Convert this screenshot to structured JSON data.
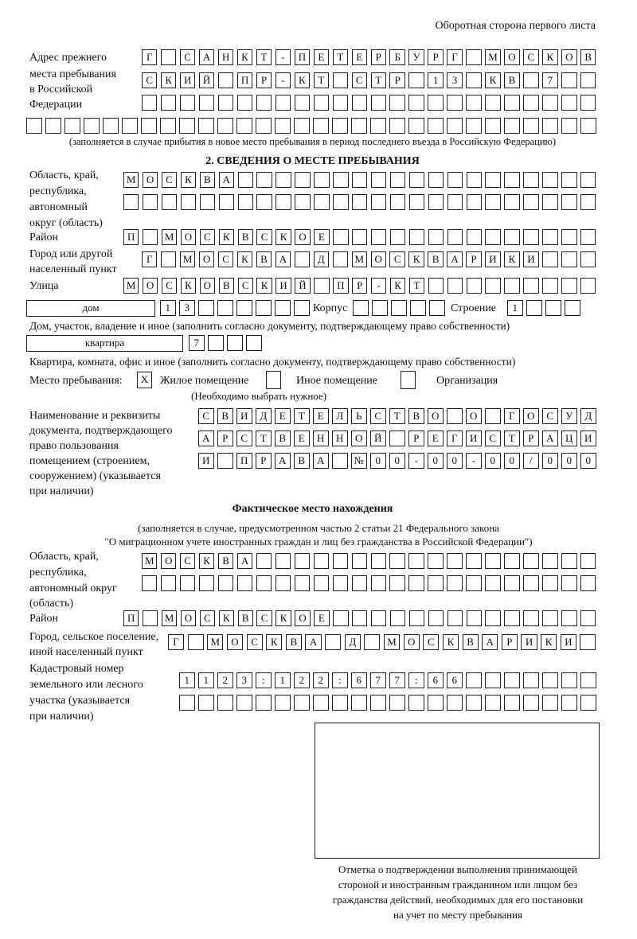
{
  "header": "Оборотная сторона первого листа",
  "prev_address": {
    "label": [
      "Адрес прежнего",
      "места пребывания",
      "в Российской",
      "Федерации"
    ],
    "note": "(заполняется в случае прибытия в новое место пребывания в период последнего въезда в Российскую Федерацию)"
  },
  "section2_title": "2. СВЕДЕНИЯ О МЕСТЕ ПРЕБЫВАНИЯ",
  "labels": {
    "region": [
      "Область, край,",
      "республика,",
      "автономный",
      "округ (область)"
    ],
    "district": "Район",
    "city": [
      "Город или другой",
      "населенный пункт"
    ],
    "street": "Улица",
    "house_type": "дом",
    "korpus": "Корпус",
    "stroenie": "Строение",
    "house_note": "Дом, участок, владение и иное (заполнить согласно документу, подтверждающему право собственности)",
    "flat_type": "квартира",
    "flat_note": "Квартира, комната, офис и иное (заполнить согласно документу, подтверждающему право собственности)",
    "place_label": "Место пребывания:",
    "opt_living": "Жилое помещение",
    "opt_other": "Иное помещение",
    "opt_org": "Организация",
    "place_note": "(Необходимо выбрать нужное)",
    "doc": [
      "Наименование и реквизиты",
      "документа, подтверждающего",
      "право пользования",
      "помещением (строением,",
      "сооружением) (указывается",
      "при наличии)"
    ],
    "actual_title": "Фактическое место нахождения",
    "actual_note": [
      "(заполняется в случае, предусмотренном частью 2 статьи 21 Федерального закона",
      "\"О миграционном учете иностранных граждан и лиц без гражданства в Российской Федерации\")"
    ],
    "region2": [
      "Область, край,",
      "республика,",
      "автономный округ",
      "(область)"
    ],
    "district2": "Район",
    "city2": [
      "Город, сельское поселение,",
      "иной населенный пункт"
    ],
    "cadastr": [
      "Кадастровый номер",
      "земельного или лесного",
      "участка (указывается",
      "при наличии)"
    ],
    "stamp_caption": [
      "Отметка о подтверждении выполнения принимающей",
      "стороной и иностранным гражданином или лицом без",
      "гражданства действий, необходимых для его постановки",
      "на учет по месту пребывания"
    ]
  },
  "place_choice": {
    "living": "X",
    "other": "",
    "org": ""
  },
  "rows": {
    "prev1": [
      "Г",
      "",
      "С",
      "А",
      "Н",
      "К",
      "Т",
      "-",
      "П",
      "Е",
      "Т",
      "Е",
      "Р",
      "Б",
      "У",
      "Р",
      "Г",
      "",
      "М",
      "О",
      "С",
      "К",
      "О",
      "В"
    ],
    "prev2": [
      "С",
      "К",
      "И",
      "Й",
      "",
      "П",
      "Р",
      "-",
      "К",
      "Т",
      "",
      "С",
      "Т",
      "Р",
      "",
      "1",
      "3",
      "",
      "К",
      "В",
      "",
      "7",
      "",
      ""
    ],
    "prev3": [
      "",
      "",
      "",
      "",
      "",
      "",
      "",
      "",
      "",
      "",
      "",
      "",
      "",
      "",
      "",
      "",
      "",
      "",
      "",
      "",
      "",
      "",
      "",
      ""
    ],
    "prev4": [
      "",
      "",
      "",
      "",
      "",
      "",
      "",
      "",
      "",
      "",
      "",
      "",
      "",
      "",
      "",
      "",
      "",
      "",
      "",
      "",
      "",
      "",
      "",
      "",
      "",
      "",
      "",
      "",
      "",
      ""
    ],
    "region1": [
      "М",
      "О",
      "С",
      "К",
      "В",
      "А",
      "",
      "",
      "",
      "",
      "",
      "",
      "",
      "",
      "",
      "",
      "",
      "",
      "",
      "",
      "",
      "",
      "",
      "",
      ""
    ],
    "region2": [
      "",
      "",
      "",
      "",
      "",
      "",
      "",
      "",
      "",
      "",
      "",
      "",
      "",
      "",
      "",
      "",
      "",
      "",
      "",
      "",
      "",
      "",
      "",
      "",
      ""
    ],
    "district": [
      "П",
      "",
      "М",
      "О",
      "С",
      "К",
      "В",
      "С",
      "К",
      "О",
      "Е",
      "",
      "",
      "",
      "",
      "",
      "",
      "",
      "",
      "",
      "",
      "",
      "",
      "",
      ""
    ],
    "city": [
      "Г",
      "",
      "М",
      "О",
      "С",
      "К",
      "В",
      "А",
      "",
      "Д",
      "",
      "М",
      "О",
      "С",
      "К",
      "В",
      "А",
      "Р",
      "И",
      "К",
      "И",
      "",
      "",
      ""
    ],
    "street": [
      "М",
      "О",
      "С",
      "К",
      "О",
      "В",
      "С",
      "К",
      "И",
      "Й",
      "",
      "П",
      "Р",
      "-",
      "К",
      "Т",
      "",
      "",
      "",
      "",
      "",
      "",
      "",
      "",
      ""
    ],
    "house": [
      "1",
      "3",
      "",
      "",
      "",
      "",
      "",
      ""
    ],
    "korpus": [
      "",
      "",
      "",
      "",
      ""
    ],
    "stroenie": [
      "1",
      "",
      "",
      ""
    ],
    "flat": [
      "7",
      "",
      "",
      ""
    ],
    "doc1": [
      "С",
      "В",
      "И",
      "Д",
      "Е",
      "Т",
      "Е",
      "Л",
      "Ь",
      "С",
      "Т",
      "В",
      "О",
      "",
      "О",
      "",
      "Г",
      "О",
      "С",
      "У",
      "Д"
    ],
    "doc2": [
      "А",
      "Р",
      "С",
      "Т",
      "В",
      "Е",
      "Н",
      "Н",
      "О",
      "Й",
      "",
      "Р",
      "Е",
      "Г",
      "И",
      "С",
      "Т",
      "Р",
      "А",
      "Ц",
      "И"
    ],
    "doc3": [
      "И",
      "",
      "П",
      "Р",
      "А",
      "В",
      "А",
      "",
      "№",
      "0",
      "0",
      "-",
      "0",
      "0",
      "-",
      "0",
      "0",
      "/",
      "0",
      "0",
      "0"
    ],
    "f_region1": [
      "М",
      "О",
      "С",
      "К",
      "В",
      "А",
      "",
      "",
      "",
      "",
      "",
      "",
      "",
      "",
      "",
      "",
      "",
      "",
      "",
      "",
      "",
      "",
      "",
      ""
    ],
    "f_region2": [
      "",
      "",
      "",
      "",
      "",
      "",
      "",
      "",
      "",
      "",
      "",
      "",
      "",
      "",
      "",
      "",
      "",
      "",
      "",
      "",
      "",
      "",
      "",
      ""
    ],
    "f_district": [
      "П",
      "",
      "М",
      "О",
      "С",
      "К",
      "В",
      "С",
      "К",
      "О",
      "Е",
      "",
      "",
      "",
      "",
      "",
      "",
      "",
      "",
      "",
      "",
      "",
      "",
      "",
      ""
    ],
    "f_city": [
      "Г",
      "",
      "М",
      "О",
      "С",
      "К",
      "В",
      "А",
      "",
      "Д",
      "",
      "М",
      "О",
      "С",
      "К",
      "В",
      "А",
      "Р",
      "И",
      "К",
      "И",
      ""
    ],
    "cad1": [
      "1",
      "1",
      "2",
      "3",
      ":",
      "1",
      "2",
      "2",
      ":",
      "6",
      "7",
      "7",
      ":",
      "6",
      "6",
      "",
      "",
      "",
      "",
      "",
      "",
      ""
    ],
    "cad2": [
      "",
      "",
      "",
      "",
      "",
      "",
      "",
      "",
      "",
      "",
      "",
      "",
      "",
      "",
      "",
      "",
      "",
      "",
      "",
      "",
      "",
      ""
    ]
  }
}
